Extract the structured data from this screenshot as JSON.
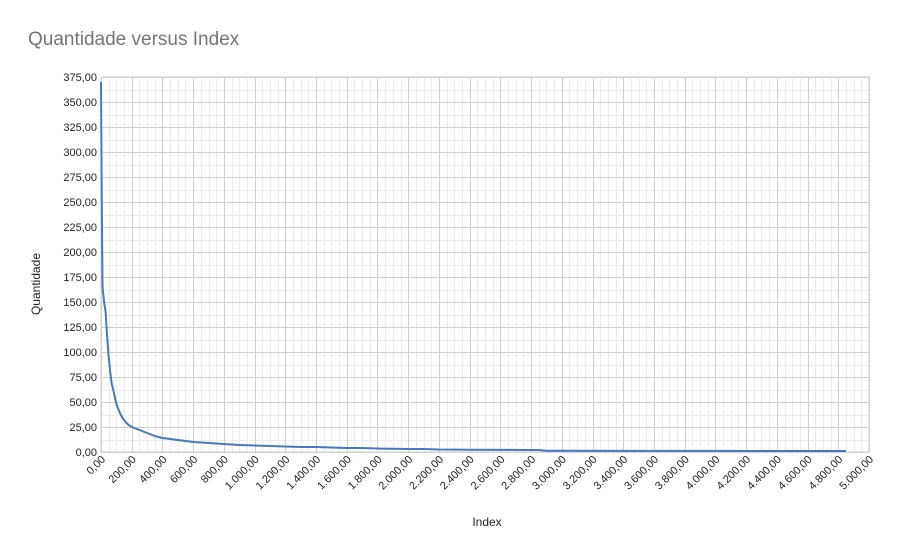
{
  "chart_data": {
    "type": "line",
    "title": "Quantidade versus Index",
    "xlabel": "Index",
    "ylabel": "Quantidade",
    "xlim": [
      0,
      5000
    ],
    "ylim": [
      0,
      375
    ],
    "x_major_step": 200,
    "y_major_step": 25,
    "grid": true,
    "x_tick_labels": [
      "0,00",
      "200,00",
      "400,00",
      "600,00",
      "800,00",
      "1.000,00",
      "1.200,00",
      "1.400,00",
      "1.600,00",
      "1.800,00",
      "2.000,00",
      "2.200,00",
      "2.400,00",
      "2.600,00",
      "2.800,00",
      "3.000,00",
      "3.200,00",
      "3.400,00",
      "3.600,00",
      "3.800,00",
      "4.000,00",
      "4.200,00",
      "4.400,00",
      "4.600,00",
      "4.800,00",
      "5.000,00"
    ],
    "y_tick_labels": [
      "0,00",
      "25,00",
      "50,00",
      "75,00",
      "100,00",
      "125,00",
      "150,00",
      "175,00",
      "200,00",
      "225,00",
      "250,00",
      "275,00",
      "300,00",
      "325,00",
      "350,00",
      "375,00"
    ],
    "series": [
      {
        "color": "#4a77bd",
        "x": [
          0,
          2,
          5,
          10,
          20,
          30,
          40,
          50,
          60,
          70,
          80,
          90,
          100,
          120,
          140,
          160,
          180,
          200,
          250,
          300,
          350,
          400,
          450,
          500,
          550,
          600,
          650,
          700,
          800,
          900,
          1000,
          1100,
          1200,
          1300,
          1400,
          1500,
          1600,
          1700,
          1800,
          1900,
          2000,
          2100,
          2200,
          2400,
          2600,
          2800,
          2850,
          2900,
          3000,
          3500,
          4000,
          4500,
          4850
        ],
        "y": [
          370,
          320,
          250,
          165,
          150,
          140,
          115,
          95,
          80,
          68,
          62,
          55,
          48,
          40,
          34,
          30,
          27,
          25,
          22,
          19,
          16,
          14,
          13,
          12,
          11,
          10,
          9.5,
          9,
          8,
          7,
          6.5,
          6,
          5.5,
          5,
          5,
          4.5,
          4,
          4,
          3.5,
          3.2,
          3,
          3,
          2.5,
          2.3,
          2.1,
          2,
          2,
          1.2,
          1.2,
          1.1,
          1.1,
          1,
          1
        ]
      }
    ]
  }
}
